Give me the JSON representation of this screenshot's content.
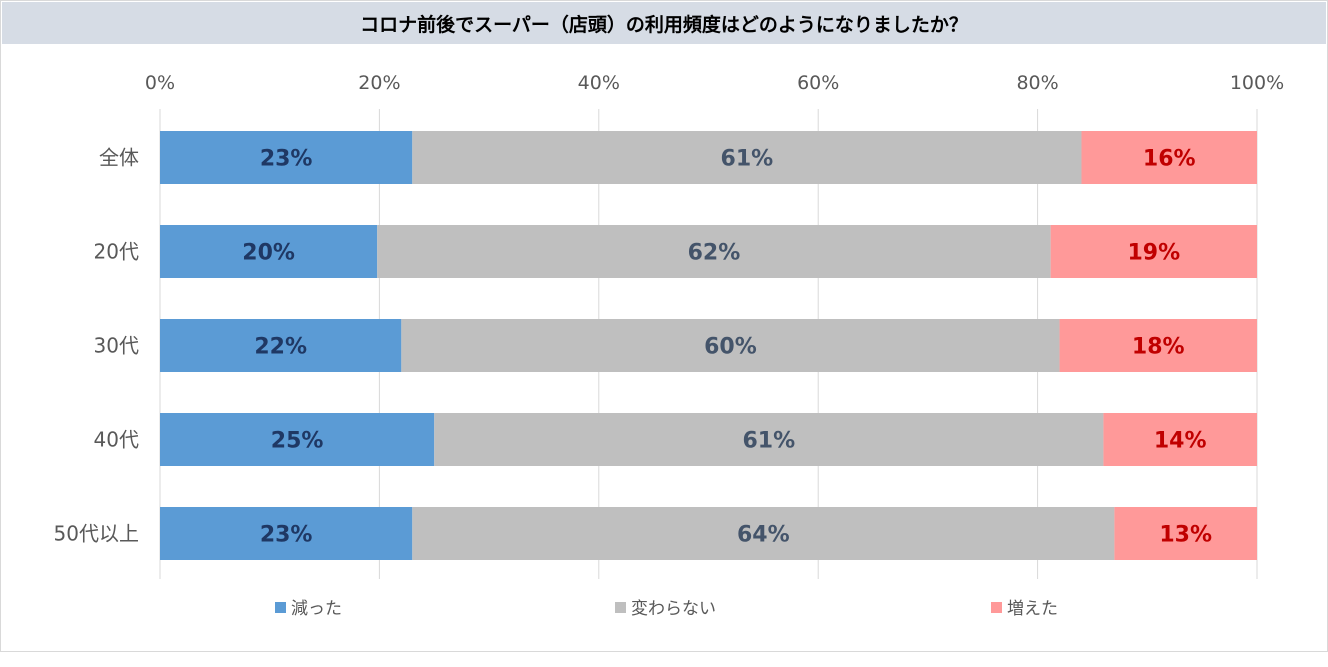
{
  "chart_data": {
    "type": "bar",
    "orientation": "horizontal",
    "stacked": "percent",
    "title": "コロナ前後でスーパー（店頭）の利用頻度はどのようになりましたか？",
    "categories": [
      "全体",
      "20代",
      "30代",
      "40代",
      "50代以上"
    ],
    "series": [
      {
        "name": "減った",
        "values": [
          23,
          20,
          22,
          25,
          23
        ],
        "labels": [
          "23%",
          "20%",
          "22%",
          "25%",
          "23%"
        ],
        "color": "#5b9bd5",
        "label_color": "#1f3864"
      },
      {
        "name": "変わらない",
        "values": [
          61,
          62,
          60,
          61,
          64
        ],
        "labels": [
          "61%",
          "62%",
          "60%",
          "61%",
          "64%"
        ],
        "color": "#bfbfbf",
        "label_color": "#44546a"
      },
      {
        "name": "増えた",
        "values": [
          16,
          19,
          18,
          14,
          13
        ],
        "labels": [
          "16%",
          "19%",
          "18%",
          "14%",
          "13%"
        ],
        "color": "#ff9999",
        "label_color": "#c00000"
      }
    ],
    "xlim": [
      0,
      100
    ],
    "x_ticks": [
      "0%",
      "20%",
      "40%",
      "60%",
      "80%",
      "100%"
    ],
    "grid": true,
    "legend_position": "bottom"
  }
}
